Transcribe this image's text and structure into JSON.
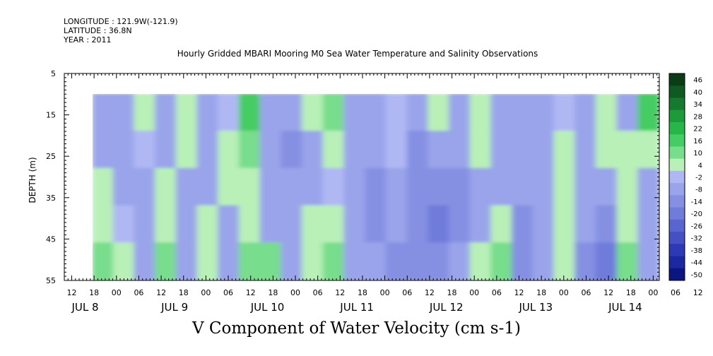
{
  "header": {
    "longitude": "LONGITUDE : 121.9W(-121.9)",
    "latitude": "LATITUDE : 36.8N",
    "year": "YEAR : 2011"
  },
  "chart_data": {
    "type": "heatmap",
    "title": "Hourly Gridded MBARI Mooring M0 Sea Water Temperature and Salinity Observations",
    "bottom_title": "V Component of Water Velocity (cm s-1)",
    "ylabel": "DEPTH (m)",
    "ylim": [
      55,
      5
    ],
    "yticks": [
      "5",
      "15",
      "25",
      "35",
      "45",
      "55"
    ],
    "x_hour_ticks": [
      "12",
      "18",
      "00",
      "06",
      "12",
      "18",
      "00",
      "06",
      "12",
      "18",
      "00",
      "06",
      "12",
      "18",
      "00",
      "06",
      "12",
      "18",
      "00",
      "06",
      "12",
      "18",
      "00",
      "06",
      "12",
      "18",
      "00",
      "06",
      "12",
      "18",
      "00"
    ],
    "x_day_labels": [
      "JUL  8",
      "JUL  9",
      "JUL 10",
      "JUL 11",
      "JUL 12",
      "JUL 13",
      "JUL 14"
    ],
    "data_depth_range": [
      10,
      55
    ],
    "colorbar_labels": [
      "46",
      "40",
      "34",
      "28",
      "22",
      "16",
      "10",
      "4",
      "-2",
      "-8",
      "-14",
      "-20",
      "-26",
      "-32",
      "-38",
      "-44",
      "-50"
    ],
    "colorbar_colors": [
      "#0a3d16",
      "#0e5a22",
      "#157a2e",
      "#1d9a3a",
      "#27b748",
      "#45cc62",
      "#78dd8c",
      "#b8f0b8",
      "#b0b8f4",
      "#9aa4ea",
      "#8590e2",
      "#707cda",
      "#5a66d0",
      "#4450c4",
      "#2e3ab4",
      "#1c28a0",
      "#0c1680"
    ],
    "time_series_v": [
      {
        "time": "JUL 7 18:00",
        "profile": [
          -8,
          -8,
          4,
          4,
          10
        ]
      },
      {
        "time": "JUL 8 00:00",
        "profile": [
          -8,
          -8,
          -8,
          -2,
          4
        ]
      },
      {
        "time": "JUL 8 06:00",
        "profile": [
          4,
          -2,
          -8,
          -8,
          -8
        ]
      },
      {
        "time": "JUL 8 12:00",
        "profile": [
          -8,
          -8,
          4,
          4,
          10
        ]
      },
      {
        "time": "JUL 8 18:00",
        "profile": [
          4,
          4,
          -8,
          -8,
          -8
        ]
      },
      {
        "time": "JUL 9 00:00",
        "profile": [
          -8,
          -8,
          -8,
          4,
          4
        ]
      },
      {
        "time": "JUL 9 06:00",
        "profile": [
          -2,
          4,
          4,
          -8,
          -8
        ]
      },
      {
        "time": "JUL 9 12:00",
        "profile": [
          16,
          10,
          4,
          4,
          10
        ]
      },
      {
        "time": "JUL 9 18:00",
        "profile": [
          -8,
          -8,
          -8,
          -8,
          10
        ]
      },
      {
        "time": "JUL 10 00:00",
        "profile": [
          -8,
          -14,
          -8,
          -8,
          -8
        ]
      },
      {
        "time": "JUL 10 06:00",
        "profile": [
          4,
          -8,
          -8,
          4,
          4
        ]
      },
      {
        "time": "JUL 10 12:00",
        "profile": [
          10,
          4,
          -2,
          4,
          10
        ]
      },
      {
        "time": "JUL 10 18:00",
        "profile": [
          -8,
          -8,
          -8,
          -8,
          -8
        ]
      },
      {
        "time": "JUL 11 00:00",
        "profile": [
          -8,
          -8,
          -14,
          -14,
          -8
        ]
      },
      {
        "time": "JUL 11 06:00",
        "profile": [
          -2,
          -2,
          -8,
          -8,
          -14
        ]
      },
      {
        "time": "JUL 11 12:00",
        "profile": [
          -8,
          -14,
          -14,
          -14,
          -14
        ]
      },
      {
        "time": "JUL 11 18:00",
        "profile": [
          4,
          -8,
          -14,
          -20,
          -14
        ]
      },
      {
        "time": "JUL 12 00:00",
        "profile": [
          -8,
          -8,
          -14,
          -14,
          -8
        ]
      },
      {
        "time": "JUL 12 06:00",
        "profile": [
          4,
          4,
          -8,
          -8,
          4
        ]
      },
      {
        "time": "JUL 12 12:00",
        "profile": [
          -8,
          -8,
          -8,
          4,
          10
        ]
      },
      {
        "time": "JUL 12 18:00",
        "profile": [
          -8,
          -8,
          -8,
          -14,
          -14
        ]
      },
      {
        "time": "JUL 13 00:00",
        "profile": [
          -8,
          -8,
          -8,
          -8,
          -8
        ]
      },
      {
        "time": "JUL 13 06:00",
        "profile": [
          -2,
          4,
          4,
          4,
          4
        ]
      },
      {
        "time": "JUL 13 12:00",
        "profile": [
          -8,
          -8,
          -8,
          -8,
          -14
        ]
      },
      {
        "time": "JUL 13 18:00",
        "profile": [
          4,
          4,
          -8,
          -14,
          -20
        ]
      },
      {
        "time": "JUL 14 00:00",
        "profile": [
          -8,
          4,
          4,
          4,
          10
        ]
      },
      {
        "time": "JUL 14 06:00",
        "profile": [
          16,
          4,
          -8,
          -8,
          -8
        ]
      }
    ]
  }
}
